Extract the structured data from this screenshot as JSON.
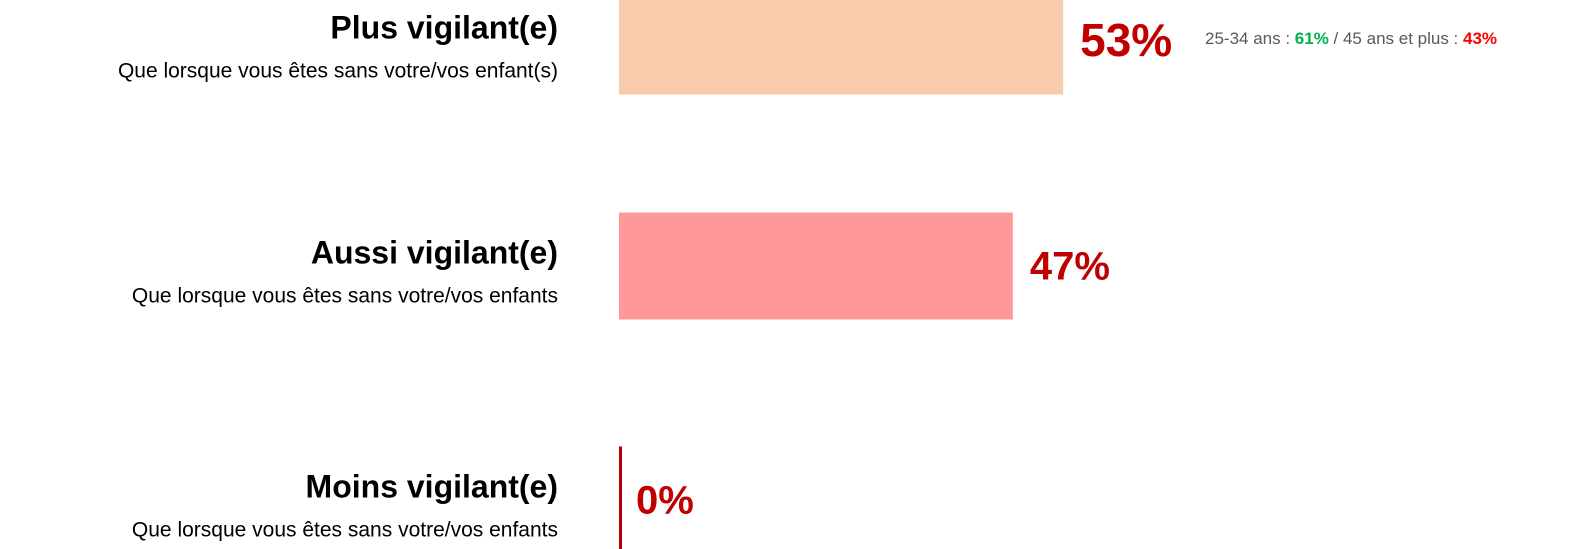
{
  "chart_data": {
    "type": "bar",
    "orientation": "horizontal",
    "categories": [
      "Plus vigilant(e)",
      "Aussi vigilant(e)",
      "Moins vigilant(e)"
    ],
    "subtitles": [
      "Que lorsque vous êtes sans votre/vos enfant(s)",
      "Que lorsque vous êtes sans votre/vos enfants",
      "Que lorsque vous êtes sans votre/vos enfants"
    ],
    "values": [
      53,
      47,
      0
    ],
    "value_labels": [
      "53%",
      "47%",
      "0%"
    ],
    "colors": [
      "#f8cbad",
      "#ff9999",
      "#b00000"
    ],
    "label_color": "#c00000",
    "annotation": {
      "prefix": "25-34 ans : ",
      "separator": " / 45 ans et plus : ",
      "values": [
        61,
        43
      ],
      "value_labels": [
        "61%",
        "43%"
      ],
      "colors": [
        "#00b050",
        "#ff0000"
      ],
      "color": "#595959"
    }
  }
}
